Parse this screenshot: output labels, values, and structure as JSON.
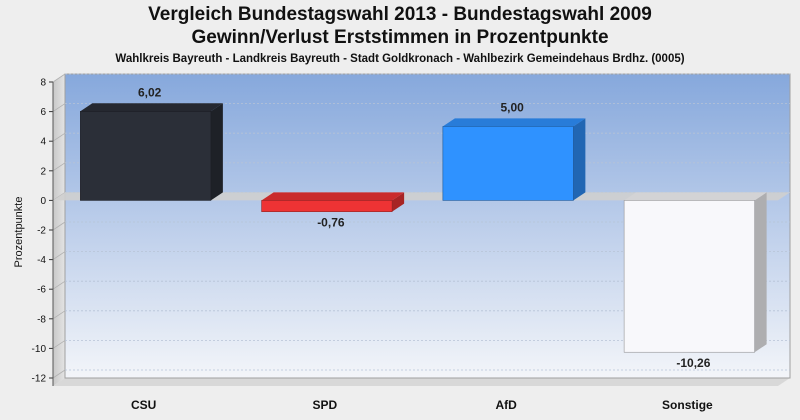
{
  "chart_data": {
    "type": "bar",
    "title": "Vergleich Bundestagswahl 2013 - Bundestagswahl 2009",
    "subtitle": "Gewinn/Verlust Erststimmen in Prozentpunkte",
    "subtitle2": "Wahlkreis Bayreuth - Landkreis Bayreuth - Stadt Goldkronach - Wahlbezirk Gemeindehaus Brdhz. (0005)",
    "ylabel": "Prozentpunkte",
    "ylim": [
      -12,
      8
    ],
    "yticks": [
      8,
      6,
      4,
      2,
      0,
      -2,
      -4,
      -6,
      -8,
      -10,
      -12
    ],
    "categories": [
      "CSU",
      "SPD",
      "AfD",
      "Sonstige"
    ],
    "values": [
      6.02,
      -0.76,
      5.0,
      -10.26
    ],
    "value_labels": [
      "6,02",
      "-0,76",
      "5,00",
      "-10,26"
    ],
    "colors": [
      "#2b2f38",
      "#ee3334",
      "#2f92ff",
      "#f8f8fb"
    ],
    "grid": true
  }
}
